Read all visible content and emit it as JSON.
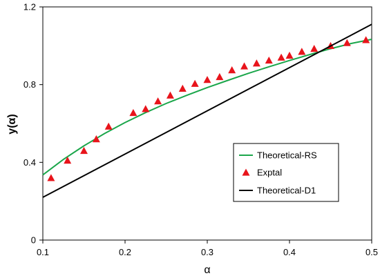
{
  "chart_data": {
    "type": "line",
    "xlabel": "α",
    "ylabel": "y(α)",
    "xlim": [
      0.1,
      0.5
    ],
    "ylim": [
      0,
      1.2
    ],
    "x_ticks": [
      "0.1",
      "0.2",
      "0.3",
      "0.4",
      "0.5"
    ],
    "y_ticks": [
      "0",
      "0.4",
      "0.8",
      "1.2"
    ],
    "grid": false,
    "legend_position": "center-right",
    "series": [
      {
        "name": "Theoretical-RS",
        "kind": "line",
        "color": "#1aa64a",
        "x": [
          0.1,
          0.125,
          0.15,
          0.175,
          0.2,
          0.225,
          0.25,
          0.275,
          0.3,
          0.325,
          0.35,
          0.375,
          0.4,
          0.425,
          0.45,
          0.475,
          0.5
        ],
        "y": [
          0.335,
          0.415,
          0.485,
          0.548,
          0.605,
          0.656,
          0.703,
          0.745,
          0.785,
          0.822,
          0.858,
          0.892,
          0.924,
          0.955,
          0.985,
          1.012,
          1.033
        ]
      },
      {
        "name": "Exptal",
        "kind": "marker",
        "color": "#e8141b",
        "x": [
          0.11,
          0.13,
          0.15,
          0.165,
          0.18,
          0.21,
          0.225,
          0.24,
          0.255,
          0.27,
          0.285,
          0.3,
          0.315,
          0.33,
          0.345,
          0.36,
          0.375,
          0.39,
          0.4,
          0.415,
          0.43,
          0.45,
          0.47,
          0.493
        ],
        "y": [
          0.32,
          0.41,
          0.46,
          0.52,
          0.585,
          0.655,
          0.675,
          0.715,
          0.745,
          0.78,
          0.805,
          0.825,
          0.84,
          0.875,
          0.895,
          0.91,
          0.925,
          0.94,
          0.95,
          0.97,
          0.985,
          1.0,
          1.015,
          1.03
        ]
      },
      {
        "name": "Theoretical-D1",
        "kind": "line",
        "color": "#000000",
        "x": [
          0.1,
          0.5
        ],
        "y": [
          0.22,
          1.11
        ]
      }
    ]
  }
}
